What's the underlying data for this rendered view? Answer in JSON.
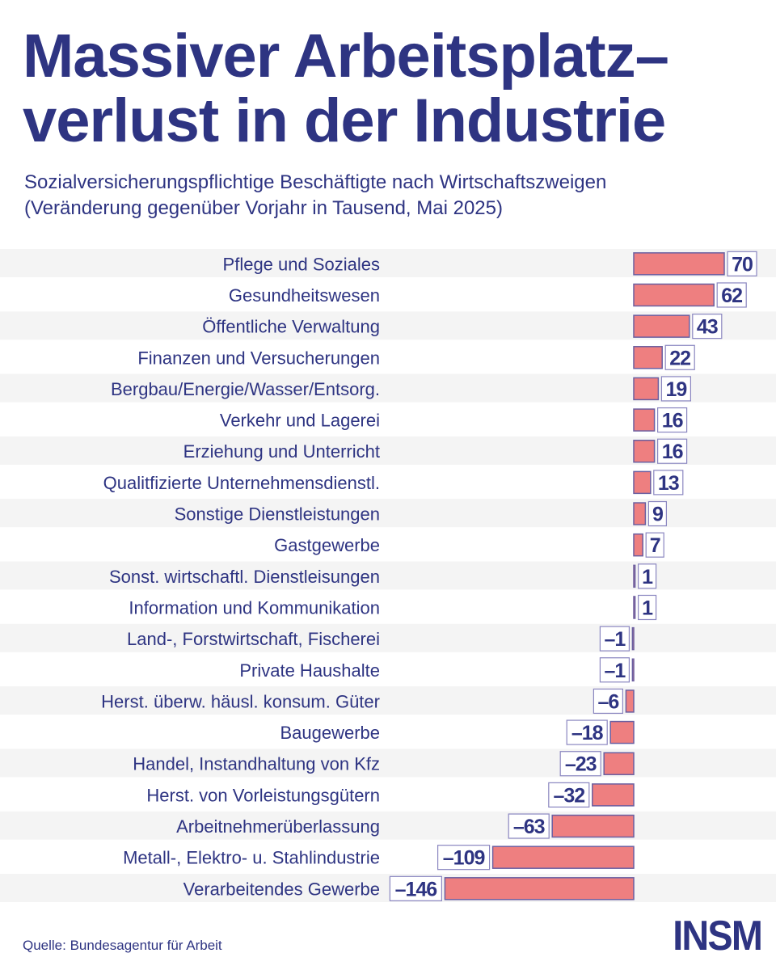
{
  "header": {
    "title": "Massiver Arbeitsplatz–verlust in der Industrie",
    "subtitle_line1": "Sozialversicherungspflichtige Beschäftigte nach Wirtschaftszweigen",
    "subtitle_line2": "(Veränderung gegenüber Vorjahr in Tausend, Mai 2025)"
  },
  "footer": {
    "source": "Quelle: Bundesagentur für Arbeit",
    "logo": "INSM"
  },
  "colors": {
    "text": "#2e3482",
    "bar": "#ee7f80",
    "bar_border": "#6b5fa0",
    "row_band": "#f4f4f4"
  },
  "chart_data": {
    "type": "bar",
    "orientation": "horizontal",
    "categories": [
      "Pflege und Soziales",
      "Gesundheitswesen",
      "Öffentliche Verwaltung",
      "Finanzen und Versucherungen",
      "Bergbau/Energie/Wasser/Entsorg.",
      "Verkehr und Lagerei",
      "Erziehung und Unterricht",
      "Qualitfizierte Unternehmensdienstl.",
      "Sonstige Dienstleistungen",
      "Gastgewerbe",
      "Sonst. wirtschaftl. Dienstleisungen",
      "Information und Kommunikation",
      "Land-, Forstwirtschaft, Fischerei",
      "Private Haushalte",
      "Herst. überw. häusl. konsum. Güter",
      "Baugewerbe",
      "Handel, Instandhaltung von Kfz",
      "Herst. von Vorleistungsgütern",
      "Arbeitnehmerüberlassung",
      "Metall-, Elektro- u. Stahlindustrie",
      "Verarbeitendes Gewerbe"
    ],
    "values": [
      70,
      62,
      43,
      22,
      19,
      16,
      16,
      13,
      9,
      7,
      1,
      1,
      -1,
      -1,
      -6,
      -18,
      -23,
      -32,
      -63,
      -109,
      -146
    ],
    "labels": [
      "70",
      "62",
      "43",
      "22",
      "19",
      "16",
      "16",
      "13",
      "9",
      "7",
      "1",
      "1",
      "–1",
      "–1",
      "–6",
      "–18",
      "–23",
      "–32",
      "–63",
      "–109",
      "–146"
    ],
    "xlim": [
      -146,
      70
    ],
    "grid": false,
    "legend": "none"
  }
}
